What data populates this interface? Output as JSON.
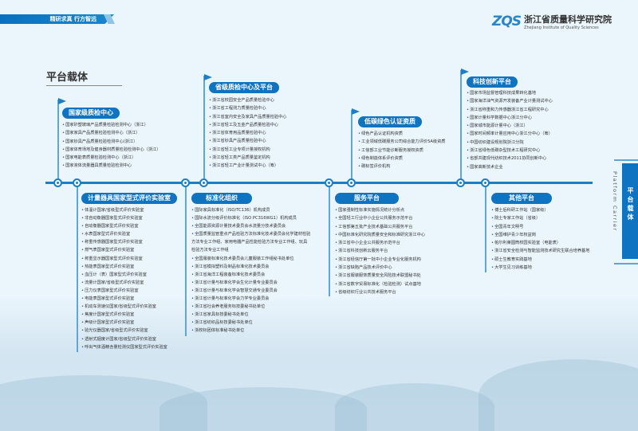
{
  "header": {
    "slogan": "精研求真  行方智远",
    "logo_mark": "ZQS",
    "institute_name": "浙江省质量科学研究院",
    "institute_name_en": "Zhejiang Institute of Quality Sciences"
  },
  "page_title": "平台载体",
  "side_tab": {
    "label": "平台载体",
    "label_en": "Platform Carrier"
  },
  "colors": {
    "primary": "#0e73c0",
    "background": "#eaf5fc"
  },
  "sections_top": [
    {
      "title": "国家级质检中心",
      "items": [
        "国家砂塑玻璃产品质量检验检测中心（浙江）",
        "国家家具产品质量检验检测中心（浙江）",
        "国家钞具产品质量检验检测中心(浙江）",
        "国家体育场地及健身器材质量检验检测中心（浙江）",
        "国家电能表质量检验检测中心（浙江）",
        "国家液体流量器具质量检验检测中心"
      ]
    },
    {
      "title": "省级质检中心及平台",
      "items": [
        "浙江省校园安全产品质量检验中心",
        "浙江省工程测力质量检验中心",
        "浙江省室内安全及家具产品质量检验中心",
        "浙江省轻工及五金产品质量检验中心",
        "浙江省体育用品质量检验中心",
        "浙江省钞具产品质量检验中心",
        "浙江省轻工业专项计量授权机构",
        "浙江省轻工类产品质量鉴定机构",
        "浙江省轻工产业计量测试中心（筹）"
      ]
    },
    {
      "title": "低碳绿色认证资质",
      "items": [
        "绿色产品认证机构资质",
        "工业领域低碳服务公司综合能力评价5A级资质",
        "工信部工业节能诊断服务授权资质",
        "绿色制造体系评价资质",
        "碳标签评价机构"
      ]
    },
    {
      "title": "科技创新平台",
      "items": [
        "国家市场监督管理科技成果转化基地",
        "国家海洋油气资源开发装备产业计量测试中心",
        "浙江省称重和力传感器浙江省工程研究中心",
        "国家计量科学数据中心浙江分中心",
        "国家城市能源计量中心（浙江）",
        "国家时间频率计量应用中心浙江分中心（筹）",
        "中国纺织建设规划院浙江分院",
        "浙江省绿色低碳杂型技术工程研究中心",
        "省部共建现代纺织技术2011协同创新中心",
        "国家高新技术企业"
      ]
    }
  ],
  "sections_bottom": [
    {
      "title": "计量器具国家型式评价实验室",
      "items": [
        "体温计国家/省级型式评价实验室",
        "非自动衡器国家型式评价实验室",
        "自动衡器国家型式评价实验室",
        "水表国家型式评价实验室",
        "称重传感器国家型式评价实验室",
        "燃气表国家型式评价实验室",
        "称重显示器国家型式评价实验室",
        "热能表国家型式评价实验室",
        "血压计（表）国家型式评价实验室",
        "流量计国家/省级型式评价实验室",
        "压力仪表国家型式评价实验室",
        "电能表国家型式评价实验室",
        "机动车测速仪国家/省级型式评价实验室",
        "焦度计国家型式评价实验室",
        "声级计国家型式评价实验室",
        "验光仪器国家/省级型式评价实验室",
        "透射式烟度计国家/省级型式评价实验室",
        "呼出气体酒精含量检测仪国家型式评价实验室"
      ]
    },
    {
      "title": "标准化组织",
      "items": [
        "国际家具标准化（ISO/TC136）机构成员",
        "国际水流分级评价标准化（ISO PC316WG1）机构成员",
        "全国能源资源计量技术委员会水流量分技术委员会",
        "全国质量监管重点产品检验方法标准化技术委员会化学建材检验方法专业工作组、家用电器产品性能检验方法专业工作组、玩具检验方法专业工作组",
        "全国服装标准化技术委员会儿童服装工作组秘书处单位",
        "浙江省模拟塑料及制品标准化技术委员会",
        "浙江省海洋工程装备标准化技术委员会",
        "浙江省计量与标准化学会生化计量专业委员会",
        "浙江省计量与标准化学会智慧交通专业委员会",
        "浙江省计量与标准化学会力学专业委员会",
        "浙江省社会养老服务标技委秘书处单位",
        "浙江省家具标技委秘书处单位",
        "浙江省纺织品标技委秘书处单位",
        "浙校标团体标准秘书处单位"
      ]
    },
    {
      "title": "服务平台",
      "items": [
        "国家强制性标准实施情况统计分析点",
        "全国轻工行业中小企业公共服务示范平台",
        "工信部第五批产业技术基础公共服务平台",
        "中国标准化研究院质量安全和标准研究浙江中心",
        "浙江省中小企业公共服务示范平台",
        "浙江省科技创新云服务平台",
        "浙江省经信厅第一批中小企业专业化服务机构",
        "浙江省缺陷产品技术评价中心",
        "浙江省服装服饰质量安全风险技术联盟秘书处",
        "浙江省数字贸易标准化（检验检测）试点基地",
        "省级纺织行业公共技术服务平台"
      ]
    },
    {
      "title": "其他平台",
      "items": [
        "博士后科研工作站（国家级）",
        "院士专家工作站（省级）",
        "全国青年文明号",
        "全国维护青少年权益岗",
        "帕尔利莱圆筒校园实验室（电能表）",
        "浙江省安全检测与智能监测技术研究生联合培养基地",
        "硕士生教育实践基地",
        "大学生见习训练基地"
      ]
    }
  ]
}
